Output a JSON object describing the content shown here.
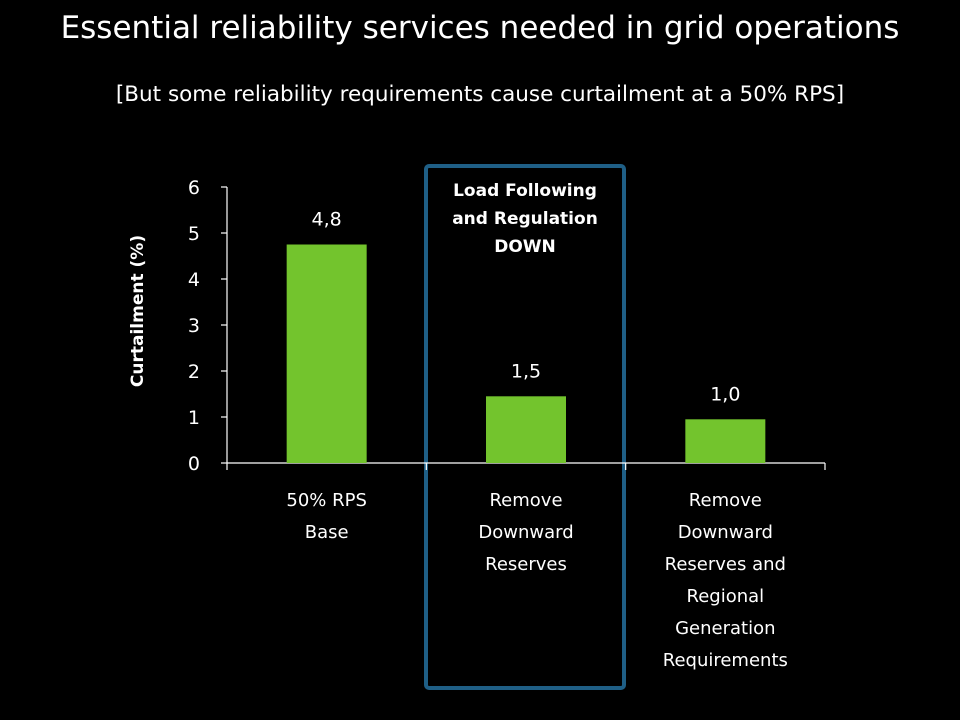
{
  "title": "Essential reliability services needed in grid operations",
  "subtitle": "[But some reliability requirements cause curtailment at a 50% RPS]",
  "highlight": {
    "label_lines": [
      "Load Following",
      "and Regulation",
      "DOWN"
    ],
    "color": "#1f5f86"
  },
  "chart_data": {
    "type": "bar",
    "categories": [
      "50% RPS Base",
      "Remove Downward Reserves",
      "Remove Downward Reserves and Regional Generation Requirements"
    ],
    "category_lines": [
      [
        "50% RPS",
        "Base"
      ],
      [
        "Remove",
        "Downward",
        "Reserves"
      ],
      [
        "Remove",
        "Downward",
        "Reserves and",
        "Regional",
        "Generation",
        "Requirements"
      ]
    ],
    "values": [
      4.75,
      1.45,
      0.95
    ],
    "data_labels": [
      "4,8",
      "1,5",
      "1,0"
    ],
    "ylabel": "Curtailment (%)",
    "ylim": [
      0,
      6
    ],
    "yticks": [
      0,
      1,
      2,
      3,
      4,
      5,
      6
    ],
    "bar_color": "#73c42d",
    "axis_color": "#ffffff",
    "grid": false,
    "legend": "none"
  }
}
